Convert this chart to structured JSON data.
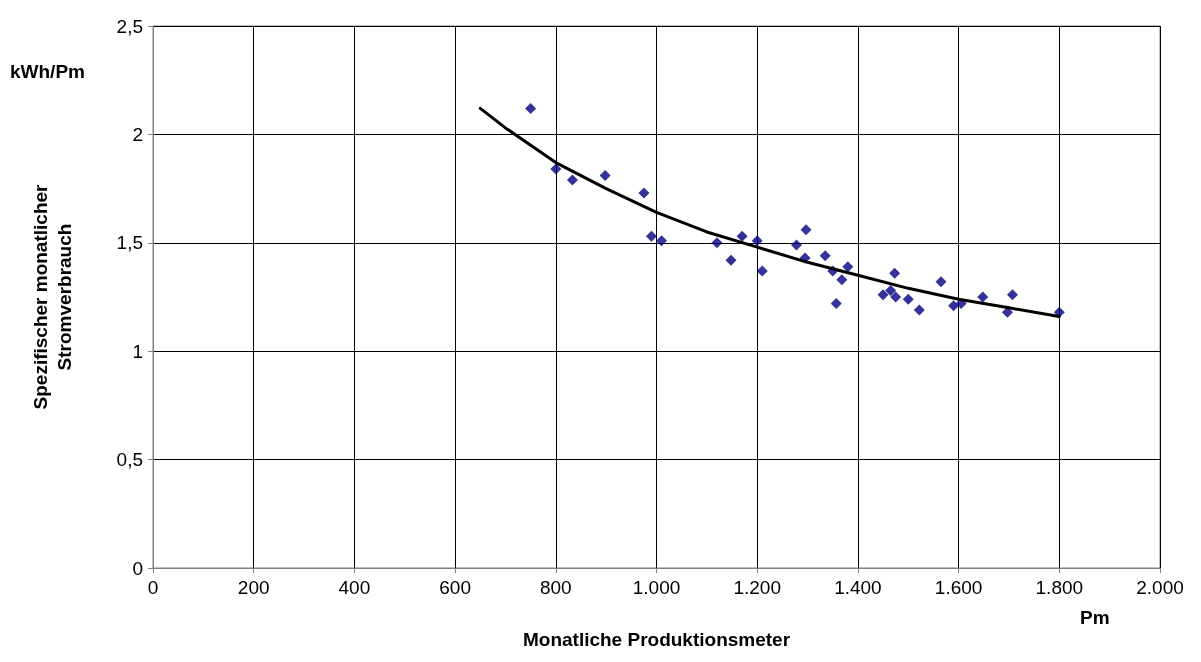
{
  "chart_data": {
    "type": "scatter",
    "xlabel": "Monatliche Produktionsmeter",
    "ylabel": "Spezifischer monatlicher\nStromverbrauch",
    "annotations": [
      "kWh/Pm",
      "Pm"
    ],
    "xlim": [
      0,
      2000
    ],
    "xticks": [
      0,
      200,
      400,
      600,
      800,
      {
        "value": 1000,
        "label": "1.000"
      },
      {
        "value": 1200,
        "label": "1.200"
      },
      {
        "value": 1400,
        "label": "1.400"
      },
      {
        "value": 1600,
        "label": "1.600"
      },
      {
        "value": 1800,
        "label": "1.800"
      },
      {
        "value": 2000,
        "label": "2.000"
      }
    ],
    "ylim": [
      0,
      2.5
    ],
    "yticks": [
      0,
      {
        "value": 0.5,
        "label": "0,5"
      },
      1,
      {
        "value": 1.5,
        "label": "1,5"
      },
      2,
      {
        "value": 2.5,
        "label": "2,5"
      }
    ],
    "grid": true,
    "marker": "diamond",
    "series": [
      {
        "color": "#000080",
        "x": [
          750,
          800,
          833,
          898,
          975,
          990,
          1010,
          1120,
          1148,
          1170,
          1200,
          1210,
          1278,
          1295,
          1297,
          1335,
          1350,
          1357,
          1368,
          1380,
          1450,
          1465,
          1473,
          1475,
          1500,
          1522,
          1565,
          1590,
          1605,
          1648,
          1697,
          1707,
          1800
        ],
        "values": [
          2.12,
          1.84,
          1.79,
          1.81,
          1.73,
          1.53,
          1.51,
          1.5,
          1.42,
          1.53,
          1.51,
          1.37,
          1.49,
          1.43,
          1.56,
          1.44,
          1.37,
          1.22,
          1.33,
          1.39,
          1.26,
          1.28,
          1.36,
          1.25,
          1.24,
          1.19,
          1.32,
          1.21,
          1.22,
          1.25,
          1.18,
          1.26,
          1.18
        ]
      },
      {
        "type": "line",
        "color": "#000000",
        "marker": "none",
        "line_style": "solid",
        "x": [
          650,
          700,
          800,
          900,
          1000,
          1100,
          1200,
          1300,
          1400,
          1500,
          1600,
          1700,
          1800
        ],
        "values": [
          2.12,
          2.03,
          1.87,
          1.75,
          1.64,
          1.55,
          1.48,
          1.41,
          1.35,
          1.29,
          1.24,
          1.2,
          1.16
        ]
      }
    ]
  }
}
